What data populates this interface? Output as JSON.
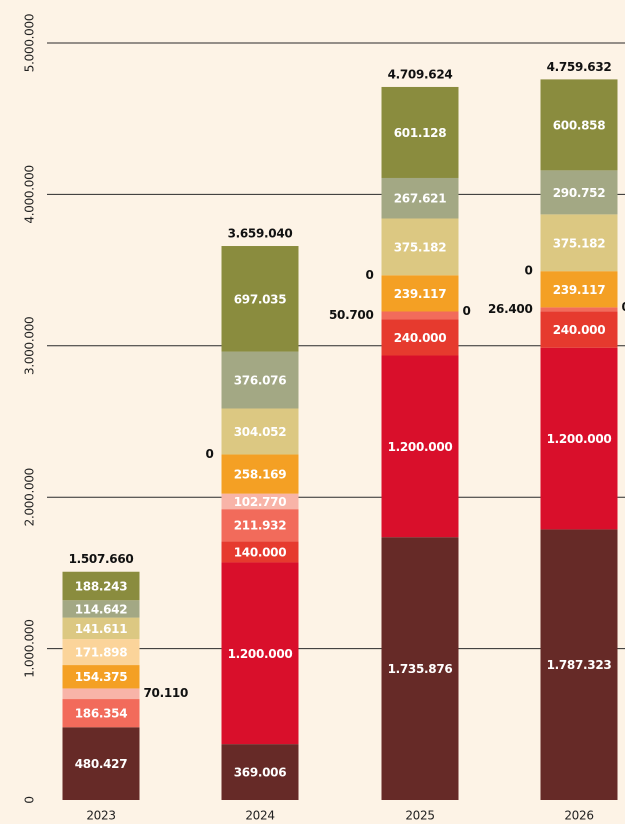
{
  "chart_data": {
    "type": "stacked_bar",
    "categories": [
      "2023",
      "2024",
      "2025",
      "2026"
    ],
    "series": [
      {
        "color": "#662a27",
        "values": [
          480427,
          369006,
          1735876,
          1787323
        ],
        "value_labels": [
          "480.427",
          "369.006",
          "1.735.876",
          "1.787.323"
        ]
      },
      {
        "color": "#d90f2b",
        "values": [
          null,
          1200000,
          1200000,
          1200000
        ],
        "value_labels": [
          null,
          "1.200.000",
          "1.200.000",
          "1.200.000"
        ]
      },
      {
        "color": "#e63a2e",
        "values": [
          null,
          140000,
          240000,
          240000
        ],
        "value_labels": [
          null,
          "140.000",
          "240.000",
          "240.000"
        ]
      },
      {
        "color": "#f26b5b",
        "values": [
          186354,
          211932,
          50700,
          26400
        ],
        "value_labels": [
          "186.354",
          "211.932",
          "50.700",
          "26.400"
        ]
      },
      {
        "color": "#f8b4a8",
        "values": [
          70110,
          102770,
          0,
          0
        ],
        "value_labels": [
          "70.110",
          "102.770",
          "0",
          "0"
        ]
      },
      {
        "color": "#f4a024",
        "values": [
          154375,
          258169,
          239117,
          239117
        ],
        "value_labels": [
          "154.375",
          "258.169",
          "239.117",
          "239.117"
        ]
      },
      {
        "color": "#fbd49a",
        "values": [
          171898,
          0,
          0,
          0
        ],
        "value_labels": [
          "171.898",
          "0",
          "0",
          "0"
        ]
      },
      {
        "color": "#dcc882",
        "values": [
          141611,
          304052,
          375182,
          375182
        ],
        "value_labels": [
          "141.611",
          "304.052",
          "375.182",
          "375.182"
        ]
      },
      {
        "color": "#a3a884",
        "values": [
          114642,
          376076,
          267621,
          290752
        ],
        "value_labels": [
          "114.642",
          "376.076",
          "267.621",
          "290.752"
        ]
      },
      {
        "color": "#8a8c3e",
        "values": [
          188243,
          697035,
          601128,
          600858
        ],
        "value_labels": [
          "188.243",
          "697.035",
          "601.128",
          "600.858"
        ]
      }
    ],
    "total_labels": [
      "1.507.660",
      "3.659.040",
      "4.709.624",
      "4.759.632"
    ],
    "ylim": [
      0,
      5000000
    ],
    "yticks": [
      0,
      {
        "value": 1000000,
        "label": "1.000.000"
      },
      {
        "value": 2000000,
        "label": "2.000.000"
      },
      {
        "value": 3000000,
        "label": "3.000.000"
      },
      {
        "value": 4000000,
        "label": "4.000.000"
      },
      {
        "value": 5000000,
        "label": "5.000.000"
      }
    ],
    "grid": true
  }
}
